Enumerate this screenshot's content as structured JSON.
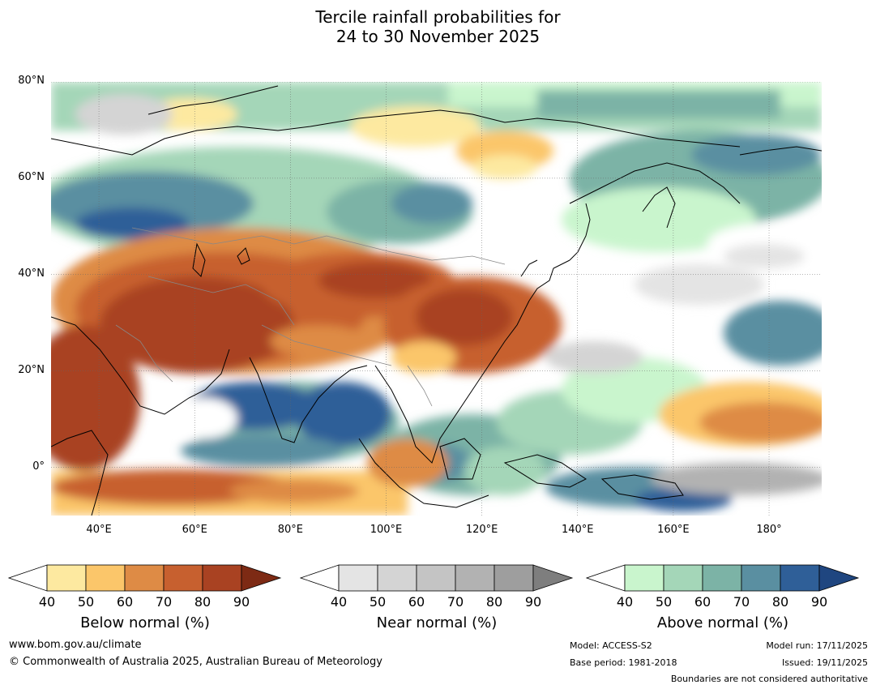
{
  "title": {
    "line1": "Tercile rainfall probabilities for",
    "line2": "24 to 30 November 2025"
  },
  "map": {
    "lat_labels": [
      "80°N",
      "60°N",
      "40°N",
      "20°N",
      "0°"
    ],
    "lon_labels": [
      "40°E",
      "60°E",
      "80°E",
      "100°E",
      "120°E",
      "140°E",
      "160°E",
      "180°"
    ],
    "lat_range": [
      -10,
      80
    ],
    "lon_range": [
      30,
      191
    ],
    "ocean_color": "#ffffff",
    "coastline_color": "#000000",
    "boundary_color": "#888888"
  },
  "colorbars": [
    {
      "title": "Below normal (%)",
      "ticks": [
        "40",
        "50",
        "60",
        "70",
        "80",
        "90"
      ],
      "colors": [
        "#ffffff",
        "#fde9a0",
        "#fbc66a",
        "#de8b45",
        "#c7602f",
        "#a94222",
        "#7d2a14"
      ]
    },
    {
      "title": "Near normal (%)",
      "ticks": [
        "40",
        "50",
        "60",
        "70",
        "80",
        "90"
      ],
      "colors": [
        "#ffffff",
        "#e4e4e4",
        "#d4d4d4",
        "#c4c4c4",
        "#b2b2b2",
        "#9e9e9e",
        "#7e7e7e"
      ]
    },
    {
      "title": "Above normal (%)",
      "ticks": [
        "40",
        "50",
        "60",
        "70",
        "80",
        "90"
      ],
      "colors": [
        "#ffffff",
        "#c9f5cd",
        "#a4d6b8",
        "#7cb3a6",
        "#5a8fa1",
        "#2f5f98",
        "#1f4680"
      ]
    }
  ],
  "footer": {
    "url": "www.bom.gov.au/climate",
    "copyright": "© Commonwealth of Australia 2025, Australian Bureau of Meteorology",
    "model": "Model: ACCESS-S2",
    "base_period": "Base period: 1981-2018",
    "model_run": "Model run: 17/11/2025",
    "issued": "Issued: 19/11/2025",
    "disclaimer": "Boundaries are not considered authoritative"
  }
}
